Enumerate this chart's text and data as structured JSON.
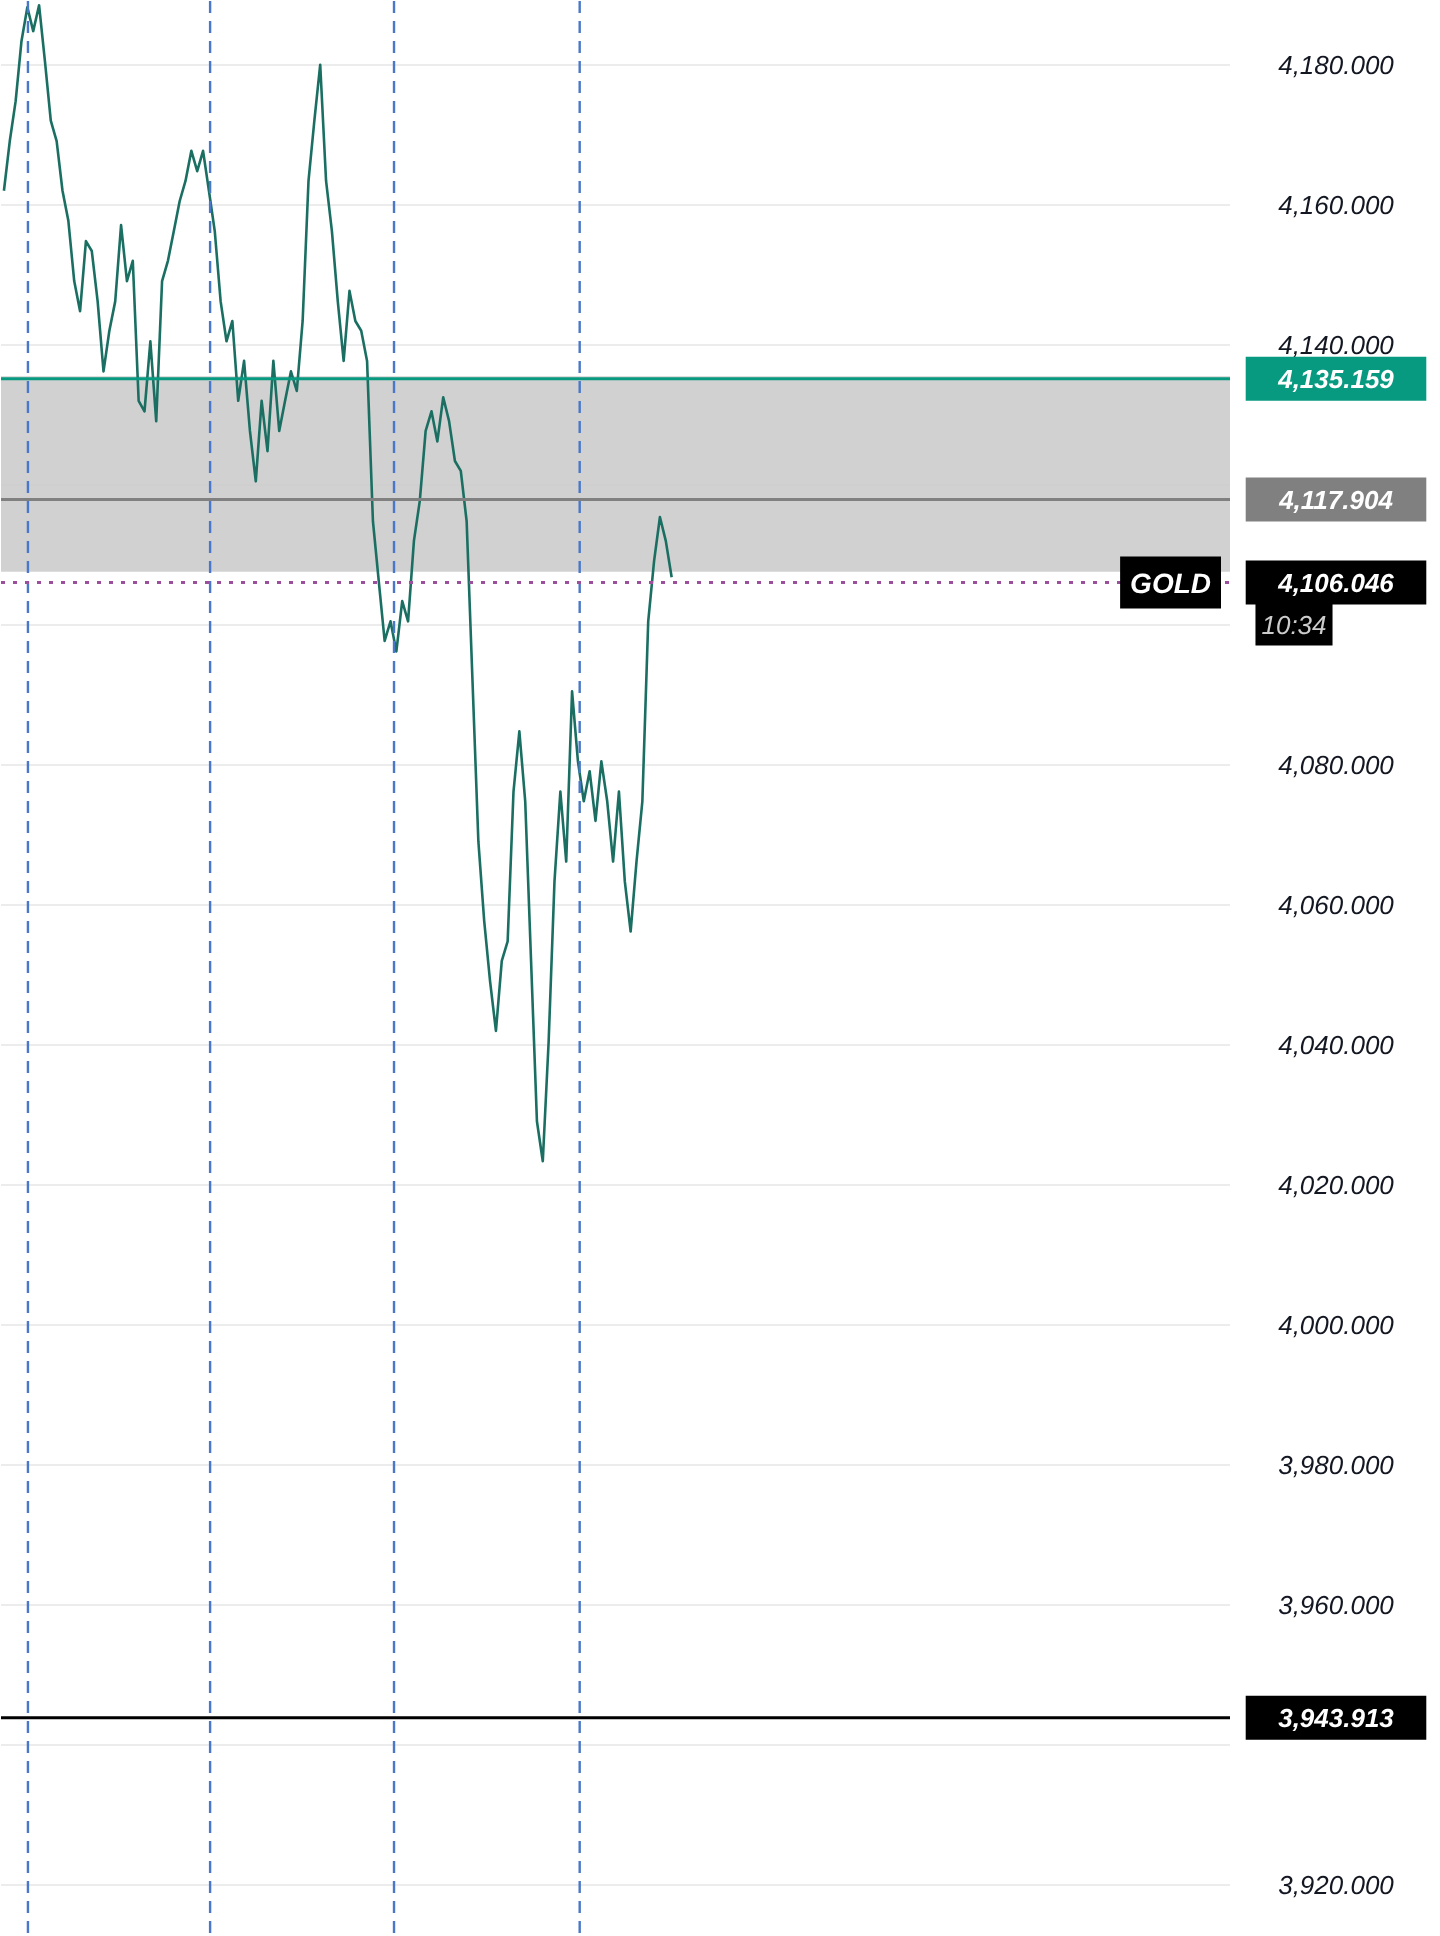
{
  "chart_data": {
    "type": "line",
    "ylim": [
      3912.6,
      4189.1
    ],
    "categories": [
      null,
      null,
      null,
      null,
      null,
      null,
      null,
      null,
      null,
      null,
      null,
      null,
      null,
      null,
      null,
      null,
      null,
      null,
      null,
      null,
      null,
      null,
      null,
      null,
      null,
      null,
      null,
      null,
      null,
      null,
      null,
      null,
      null,
      null,
      null,
      null,
      null,
      null,
      null,
      null,
      null,
      null,
      null,
      null,
      null,
      null,
      null,
      null,
      null,
      null,
      null,
      null,
      null,
      null,
      null,
      null,
      null,
      null,
      null,
      null,
      null,
      null,
      null,
      null,
      null,
      null,
      null,
      null,
      null,
      null,
      null,
      null,
      null,
      null,
      null,
      null,
      null,
      null,
      null,
      null,
      null,
      null,
      null,
      null,
      null,
      null,
      null,
      null,
      null,
      null,
      null,
      null,
      null,
      null,
      null,
      null,
      null,
      null,
      null,
      null,
      null,
      null,
      null,
      null,
      null,
      null,
      null,
      null,
      null,
      null,
      null,
      null,
      null,
      null,
      null,
      null,
      null,
      null,
      null,
      null,
      null,
      null,
      null,
      null,
      null,
      null,
      null,
      null,
      null,
      null,
      null,
      null,
      null,
      null,
      null,
      null,
      null,
      null,
      null,
      null,
      null,
      null,
      null,
      null,
      null,
      null,
      null,
      null,
      null,
      null,
      null,
      null,
      null,
      null,
      null,
      null,
      null,
      null,
      null,
      null,
      null,
      null,
      null,
      null,
      null,
      null,
      null,
      null,
      null,
      null,
      null,
      null,
      null,
      null,
      null,
      null,
      null,
      null,
      null,
      null,
      null,
      null,
      null,
      null,
      null,
      null,
      null,
      null,
      null,
      null,
      null,
      null,
      null,
      null,
      null,
      null,
      null,
      null,
      null,
      null,
      null,
      null,
      null,
      null,
      null,
      null,
      null,
      null,
      null,
      null
    ],
    "yticks": [
      {
        "value": 3920,
        "label": "3,920.000"
      },
      {
        "value": 3940,
        "label": null
      },
      {
        "value": 3960,
        "label": "3,960.000"
      },
      {
        "value": 3980,
        "label": "3,980.000"
      },
      {
        "value": 4000,
        "label": "4,000.000"
      },
      {
        "value": 4020,
        "label": "4,020.000"
      },
      {
        "value": 4040,
        "label": "4,040.000"
      },
      {
        "value": 4060,
        "label": "4,060.000"
      },
      {
        "value": 4080,
        "label": "4,080.000"
      },
      {
        "value": 4100,
        "label": null
      },
      {
        "value": 4120,
        "label": null
      },
      {
        "value": 4140,
        "label": "4,140.000"
      },
      {
        "value": 4160,
        "label": "4,160.000"
      },
      {
        "value": 4180,
        "label": "4,180.000"
      }
    ],
    "tick_labels": "y",
    "grid": "y",
    "series": [
      {
        "color": "#1b6f62",
        "values": [
          4162.0,
          4169.1,
          4174.8,
          4183.4,
          4188.2,
          4184.8,
          4188.5,
          4180.5,
          4172.0,
          4169.1,
          4162.0,
          4157.7,
          4149.1,
          4144.8,
          4154.8,
          4153.4,
          4146.2,
          4136.2,
          4142.0,
          4146.2,
          4157.1,
          4149.1,
          4152.0,
          4132.0,
          4130.5,
          4140.5,
          4129.1,
          4149.1,
          4152.0,
          4156.2,
          4160.5,
          4163.4,
          4167.7,
          4164.8,
          4167.7,
          4162.0,
          4156.2,
          4146.2,
          4140.5,
          4143.4,
          4132.0,
          4137.7,
          4127.7,
          4120.5,
          4132.0,
          4124.8,
          4137.7,
          4127.7,
          4132.0,
          4136.2,
          4133.4,
          4143.4,
          4163.4,
          4172.0,
          4180.0,
          4163.4,
          4156.2,
          4146.2,
          4137.7,
          4147.7,
          4143.4,
          4142.0,
          4137.7,
          4114.8,
          4106.2,
          4097.7,
          4100.5,
          4096.2,
          4103.4,
          4100.5,
          4112.0,
          4117.7,
          4127.7,
          4130.5,
          4126.2,
          4132.5,
          4129.1,
          4123.4,
          4122.0,
          4114.8,
          4092.0,
          4069.1,
          4057.7,
          4049.1,
          4042.0,
          4052.0,
          4054.8,
          4076.2,
          4084.8,
          4074.8,
          4052.0,
          4029.1,
          4023.4,
          4040.5,
          4063.4,
          4076.2,
          4066.2,
          4090.5,
          4080.5,
          4074.8,
          4079.1,
          4072.0,
          4080.5,
          4074.8,
          4066.2,
          4076.2,
          4063.4,
          4056.2,
          4066.2,
          4074.8,
          4100.5,
          4109.1,
          4115.4,
          4112.0,
          4106.8,
          null,
          null,
          null,
          null,
          null,
          null,
          null,
          null,
          null,
          null,
          null,
          null,
          null,
          null,
          null,
          null,
          null,
          null,
          null,
          null,
          null,
          null,
          null,
          null,
          null,
          null,
          null,
          null,
          null,
          null,
          null,
          null,
          null,
          null,
          null,
          null,
          null,
          null,
          null,
          null,
          null,
          null,
          null,
          null,
          null,
          null,
          null,
          null,
          null,
          null,
          null,
          null,
          null,
          null,
          null,
          null,
          null,
          null,
          null,
          null,
          null,
          null,
          null,
          null,
          null,
          null,
          null,
          null,
          null,
          null,
          null,
          null,
          null,
          null,
          null,
          null,
          null,
          null,
          null,
          null,
          null,
          null,
          null,
          null,
          null,
          null,
          null,
          null,
          null,
          null,
          null,
          null,
          null,
          null,
          null
        ]
      }
    ],
    "bands": [
      {
        "axis": "y",
        "from": 4107.6,
        "to": 4135.5,
        "color": "#cccccc"
      }
    ],
    "ref_lines": [
      {
        "axis": "y",
        "value": 3943.913,
        "label": "3,943.913",
        "color": "#000000",
        "line_style": "solid"
      },
      {
        "axis": "y",
        "value": 4135.159,
        "label": "4,135.159",
        "color": "#089981",
        "line_style": "solid"
      },
      {
        "axis": "y",
        "value": 4117.904,
        "label": "4,117.904",
        "color": "#808080",
        "line_style": "solid"
      },
      {
        "axis": "y",
        "value": 4106.046,
        "label": "4,106.046",
        "color": "#9c4f9c",
        "line_style": "dotted"
      }
    ],
    "annotations": [
      "GOLD",
      "10:34"
    ]
  }
}
